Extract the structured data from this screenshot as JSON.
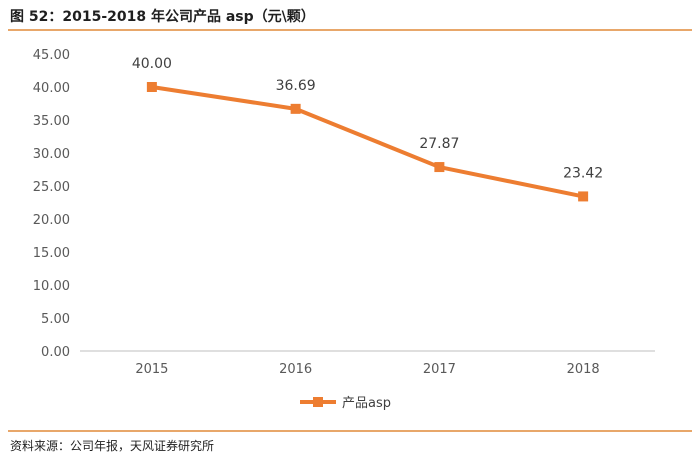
{
  "figure": {
    "title": "图 52：2015-2018 年公司产品 asp（元\\颗）",
    "source": "资料来源：公司年报，天风证券研究所"
  },
  "colors": {
    "accent": "#ed7d31",
    "rule": "#e8a76a",
    "axis": "#bfbfbf"
  },
  "chart_data": {
    "type": "line",
    "title": "2015-2018 年公司产品 asp（元\\颗）",
    "categories": [
      "2015",
      "2016",
      "2017",
      "2018"
    ],
    "series": [
      {
        "name": "产品asp",
        "values": [
          40.0,
          36.69,
          27.87,
          23.42
        ],
        "labels": [
          "40.00",
          "36.69",
          "27.87",
          "23.42"
        ]
      }
    ],
    "yticks": [
      "0.00",
      "5.00",
      "10.00",
      "15.00",
      "20.00",
      "25.00",
      "30.00",
      "35.00",
      "40.00",
      "45.00"
    ],
    "ylim": [
      0,
      45
    ],
    "xlabel": "",
    "ylabel": "",
    "grid": false,
    "legend": "bottom-center",
    "marker": "square"
  }
}
